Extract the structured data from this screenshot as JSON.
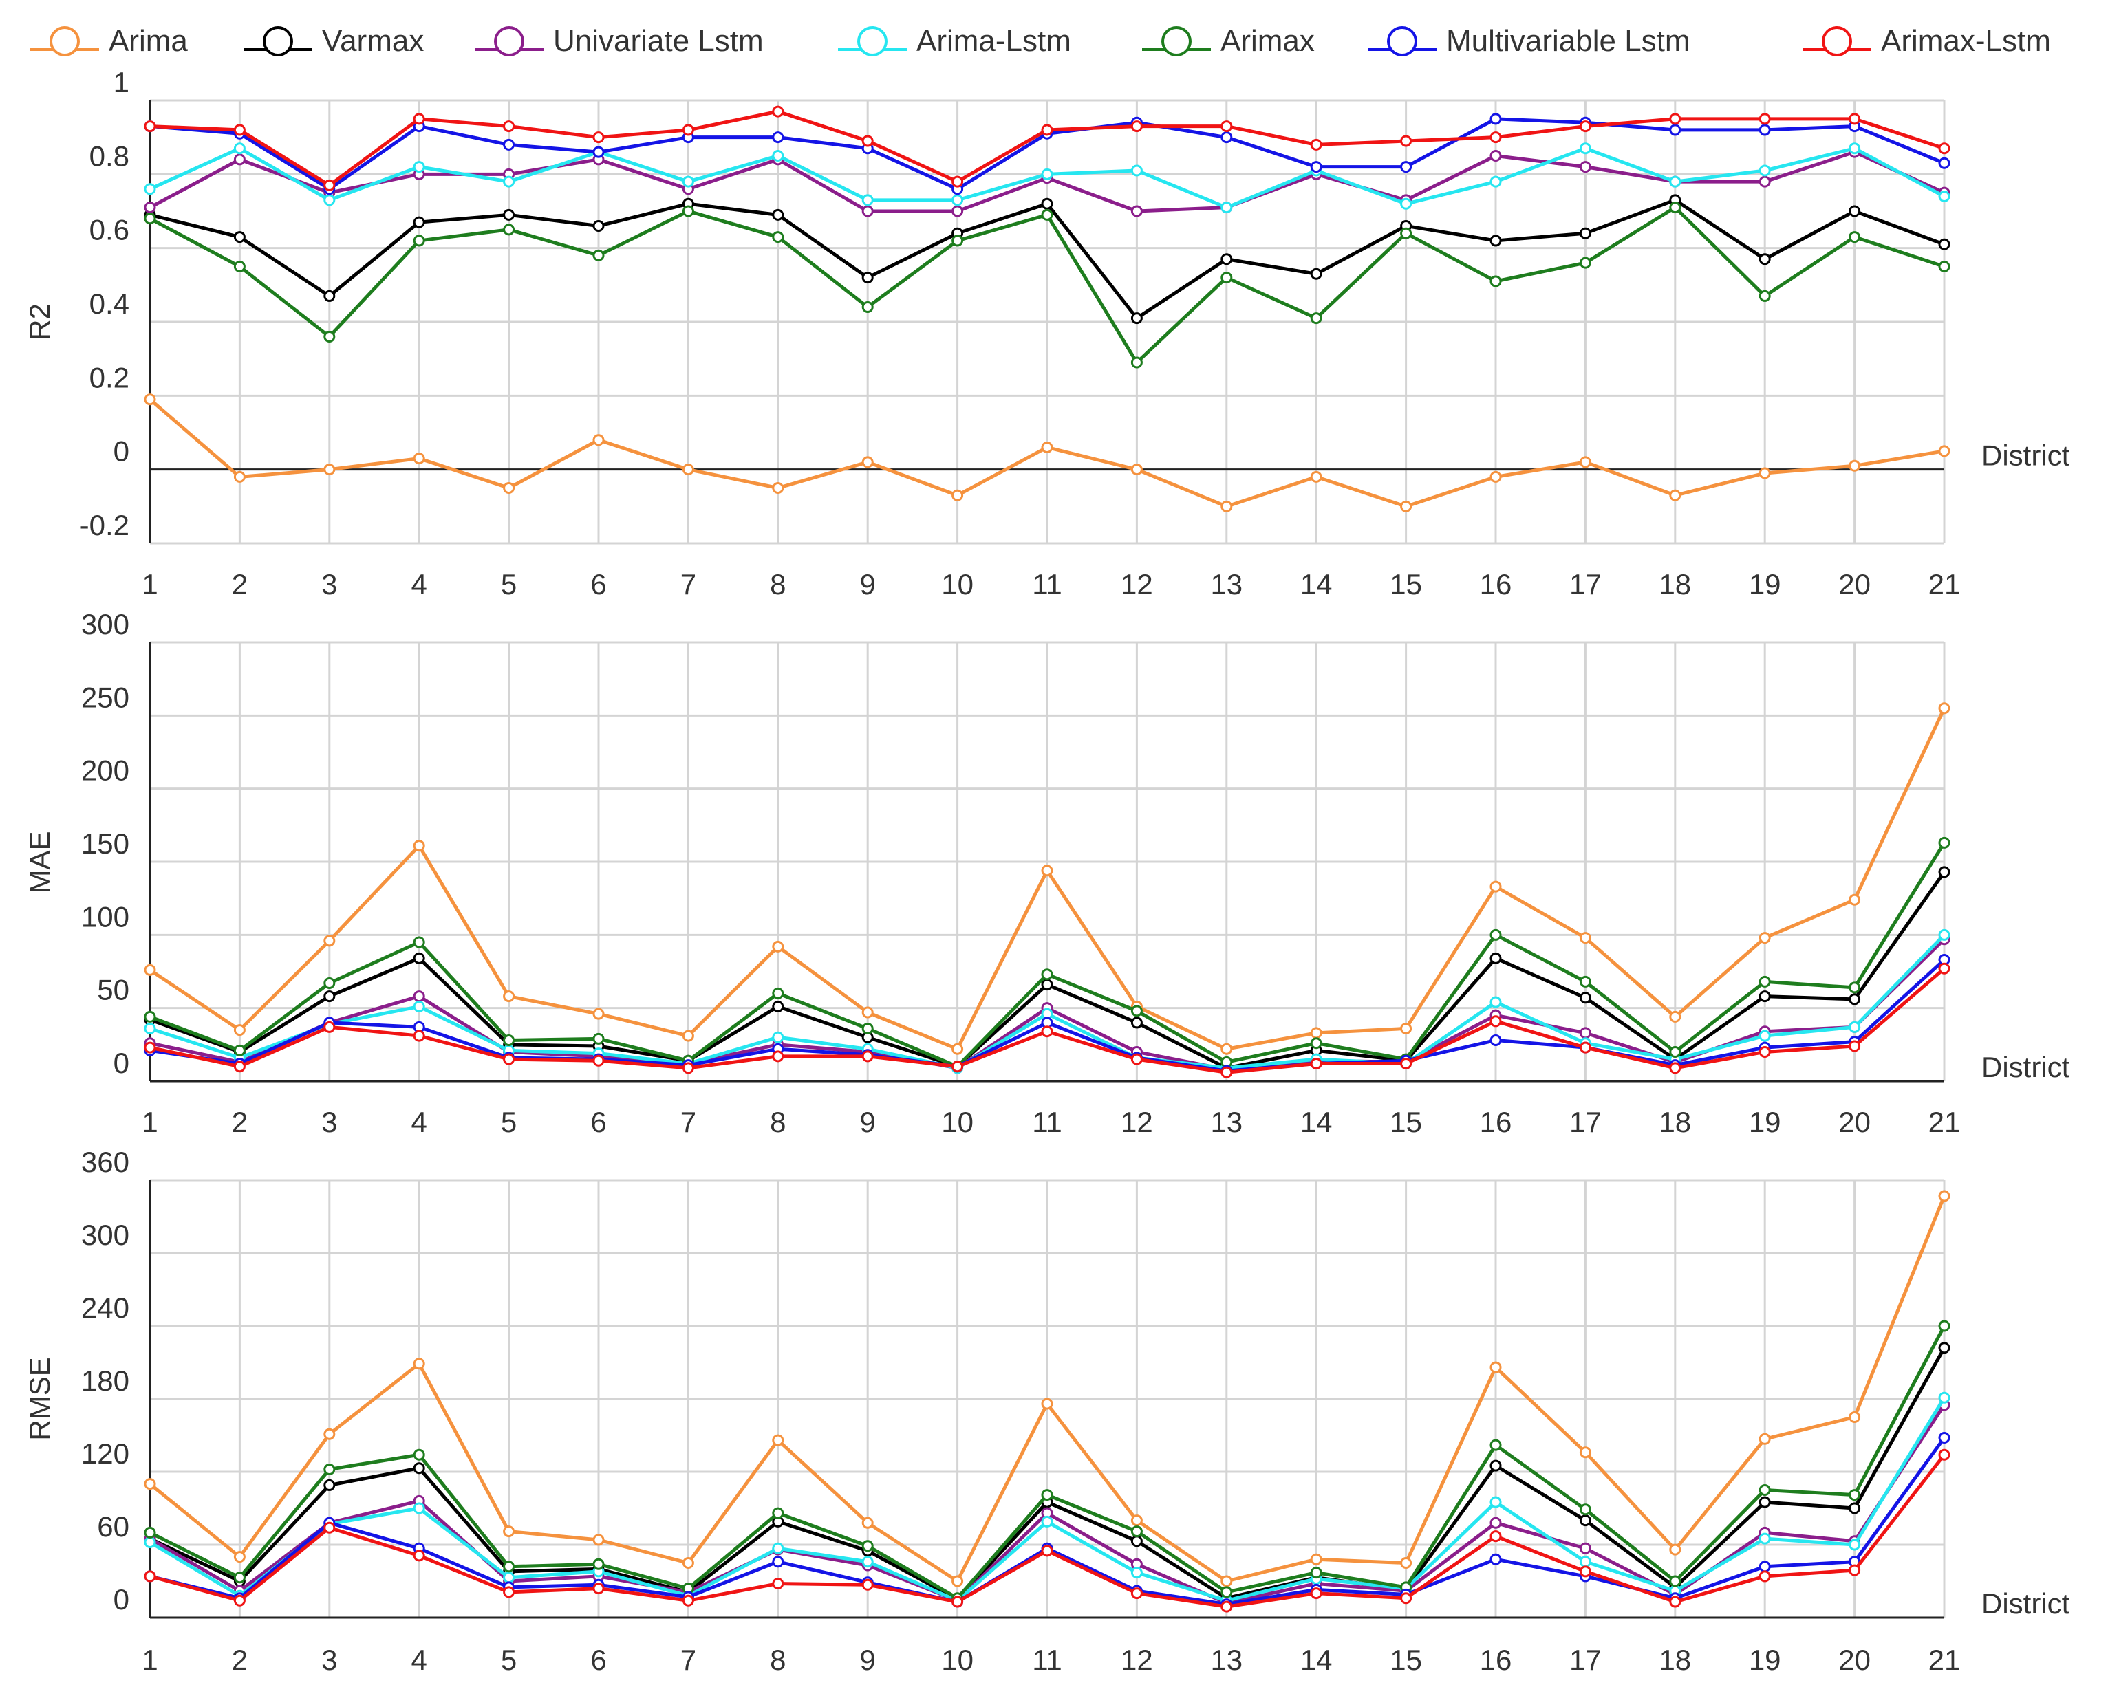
{
  "chart_data": [
    {
      "type": "line",
      "panel": "r2",
      "ylabel": "R2",
      "xlabel": "District",
      "categories": [
        "1",
        "2",
        "3",
        "4",
        "5",
        "6",
        "7",
        "8",
        "9",
        "10",
        "11",
        "12",
        "13",
        "14",
        "15",
        "16",
        "17",
        "18",
        "19",
        "20",
        "21"
      ],
      "ylim": [
        -0.2,
        1
      ],
      "yticks": [
        -0.2,
        0,
        0.2,
        0.4,
        0.6,
        0.8,
        1
      ],
      "ytick_labels": [
        "-0.2",
        "0",
        "0.2",
        "0.4",
        "0.6",
        "0.8",
        "1"
      ],
      "series": [
        {
          "name": "Arima",
          "values": [
            0.19,
            -0.02,
            0.0,
            0.03,
            -0.05,
            0.08,
            0.0,
            -0.05,
            0.02,
            -0.07,
            0.06,
            0.0,
            -0.1,
            -0.02,
            -0.1,
            -0.02,
            0.02,
            -0.07,
            -0.01,
            0.01,
            0.05
          ]
        },
        {
          "name": "Varmax",
          "values": [
            0.69,
            0.63,
            0.47,
            0.67,
            0.69,
            0.66,
            0.72,
            0.69,
            0.52,
            0.64,
            0.72,
            0.41,
            0.57,
            0.53,
            0.66,
            0.62,
            0.64,
            0.73,
            0.57,
            0.7,
            0.61
          ]
        },
        {
          "name": "Univariate Lstm",
          "values": [
            0.71,
            0.84,
            0.75,
            0.8,
            0.8,
            0.84,
            0.76,
            0.84,
            0.7,
            0.7,
            0.79,
            0.7,
            0.71,
            0.8,
            0.73,
            0.85,
            0.82,
            0.78,
            0.78,
            0.86,
            0.75
          ]
        },
        {
          "name": "Arima-Lstm",
          "values": [
            0.76,
            0.87,
            0.73,
            0.82,
            0.78,
            0.86,
            0.78,
            0.85,
            0.73,
            0.73,
            0.8,
            0.81,
            0.71,
            0.81,
            0.72,
            0.78,
            0.87,
            0.78,
            0.81,
            0.87,
            0.74
          ]
        },
        {
          "name": "Arimax",
          "values": [
            0.68,
            0.55,
            0.36,
            0.62,
            0.65,
            0.58,
            0.7,
            0.63,
            0.44,
            0.62,
            0.69,
            0.29,
            0.52,
            0.41,
            0.64,
            0.51,
            0.56,
            0.71,
            0.47,
            0.63,
            0.55
          ]
        },
        {
          "name": "Multivariable Lstm",
          "values": [
            0.93,
            0.91,
            0.76,
            0.93,
            0.88,
            0.86,
            0.9,
            0.9,
            0.87,
            0.76,
            0.91,
            0.94,
            0.9,
            0.82,
            0.82,
            0.95,
            0.94,
            0.92,
            0.92,
            0.93,
            0.83
          ]
        },
        {
          "name": "Arimax-Lstm",
          "values": [
            0.93,
            0.92,
            0.77,
            0.95,
            0.93,
            0.9,
            0.92,
            0.97,
            0.89,
            0.78,
            0.92,
            0.93,
            0.93,
            0.88,
            0.89,
            0.9,
            0.93,
            0.95,
            0.95,
            0.95,
            0.87
          ]
        }
      ]
    },
    {
      "type": "line",
      "panel": "mae",
      "ylabel": "MAE",
      "xlabel": "District",
      "categories": [
        "1",
        "2",
        "3",
        "4",
        "5",
        "6",
        "7",
        "8",
        "9",
        "10",
        "11",
        "12",
        "13",
        "14",
        "15",
        "16",
        "17",
        "18",
        "19",
        "20",
        "21"
      ],
      "ylim": [
        0,
        300
      ],
      "yticks": [
        0,
        50,
        100,
        150,
        200,
        250,
        300
      ],
      "ytick_labels": [
        "0",
        "50",
        "100",
        "150",
        "200",
        "250",
        "300"
      ],
      "series": [
        {
          "name": "Arima",
          "values": [
            76,
            35,
            96,
            161,
            58,
            46,
            31,
            92,
            47,
            22,
            144,
            51,
            22,
            33,
            36,
            133,
            98,
            44,
            98,
            124,
            255
          ]
        },
        {
          "name": "Varmax",
          "values": [
            42,
            20,
            58,
            84,
            25,
            24,
            14,
            51,
            30,
            10,
            66,
            40,
            9,
            21,
            14,
            84,
            57,
            15,
            58,
            56,
            143
          ]
        },
        {
          "name": "Univariate Lstm",
          "values": [
            26,
            13,
            40,
            58,
            20,
            17,
            12,
            25,
            20,
            9,
            50,
            20,
            8,
            14,
            13,
            45,
            33,
            13,
            34,
            37,
            97
          ]
        },
        {
          "name": "Arima-Lstm",
          "values": [
            36,
            16,
            39,
            51,
            21,
            19,
            12,
            30,
            22,
            9,
            46,
            16,
            9,
            15,
            12,
            54,
            26,
            15,
            31,
            37,
            100
          ]
        },
        {
          "name": "Arimax",
          "values": [
            44,
            21,
            67,
            95,
            28,
            29,
            14,
            60,
            36,
            10,
            73,
            48,
            13,
            26,
            15,
            100,
            68,
            20,
            68,
            64,
            163
          ]
        },
        {
          "name": "Multivariable Lstm",
          "values": [
            21,
            12,
            40,
            37,
            16,
            15,
            11,
            22,
            18,
            10,
            40,
            16,
            7,
            12,
            14,
            28,
            23,
            11,
            23,
            27,
            83
          ]
        },
        {
          "name": "Arimax-Lstm",
          "values": [
            23,
            10,
            37,
            31,
            15,
            14,
            9,
            17,
            17,
            10,
            34,
            15,
            6,
            12,
            12,
            41,
            23,
            9,
            20,
            24,
            77
          ]
        }
      ]
    },
    {
      "type": "line",
      "panel": "rmse",
      "ylabel": "RMSE",
      "xlabel": "District",
      "categories": [
        "1",
        "2",
        "3",
        "4",
        "5",
        "6",
        "7",
        "8",
        "9",
        "10",
        "11",
        "12",
        "13",
        "14",
        "15",
        "16",
        "17",
        "18",
        "19",
        "20",
        "21"
      ],
      "ylim": [
        0,
        360
      ],
      "yticks": [
        0,
        60,
        120,
        180,
        240,
        300,
        360
      ],
      "ytick_labels": [
        "0",
        "60",
        "120",
        "180",
        "240",
        "300",
        "360"
      ],
      "series": [
        {
          "name": "Arima",
          "values": [
            110,
            50,
            151,
            209,
            71,
            64,
            45,
            146,
            78,
            30,
            176,
            80,
            30,
            48,
            45,
            206,
            136,
            56,
            147,
            165,
            347
          ]
        },
        {
          "name": "Varmax",
          "values": [
            65,
            30,
            109,
            123,
            38,
            40,
            21,
            79,
            55,
            15,
            95,
            63,
            16,
            33,
            23,
            125,
            80,
            25,
            95,
            90,
            222
          ]
        },
        {
          "name": "Univariate Lstm",
          "values": [
            65,
            22,
            78,
            96,
            30,
            34,
            21,
            56,
            43,
            14,
            86,
            44,
            12,
            28,
            22,
            78,
            57,
            19,
            70,
            63,
            175
          ]
        },
        {
          "name": "Arima-Lstm",
          "values": [
            62,
            18,
            77,
            90,
            33,
            38,
            18,
            57,
            46,
            14,
            79,
            37,
            14,
            32,
            24,
            95,
            46,
            22,
            65,
            60,
            181
          ]
        },
        {
          "name": "Arimax",
          "values": [
            70,
            33,
            122,
            134,
            42,
            44,
            24,
            86,
            59,
            16,
            101,
            71,
            21,
            37,
            25,
            142,
            89,
            30,
            105,
            101,
            240
          ]
        },
        {
          "name": "Multivariable Lstm",
          "values": [
            34,
            16,
            78,
            57,
            25,
            27,
            17,
            46,
            29,
            13,
            57,
            22,
            11,
            23,
            19,
            48,
            34,
            16,
            42,
            46,
            148
          ]
        },
        {
          "name": "Arimax-Lstm",
          "values": [
            34,
            14,
            74,
            51,
            21,
            24,
            14,
            28,
            27,
            13,
            55,
            20,
            9,
            20,
            16,
            67,
            38,
            13,
            34,
            39,
            134
          ]
        }
      ]
    }
  ],
  "legend": [
    {
      "name": "Arima",
      "color": "#F5923E"
    },
    {
      "name": "Varmax",
      "color": "#000000"
    },
    {
      "name": "Univariate Lstm",
      "color": "#8B1E8B"
    },
    {
      "name": "Arima-Lstm",
      "color": "#26E6F0"
    },
    {
      "name": "Arimax",
      "color": "#1E7D1E"
    },
    {
      "name": "Multivariable Lstm",
      "color": "#1414E6"
    },
    {
      "name": "Arimax-Lstm",
      "color": "#F01414"
    }
  ]
}
